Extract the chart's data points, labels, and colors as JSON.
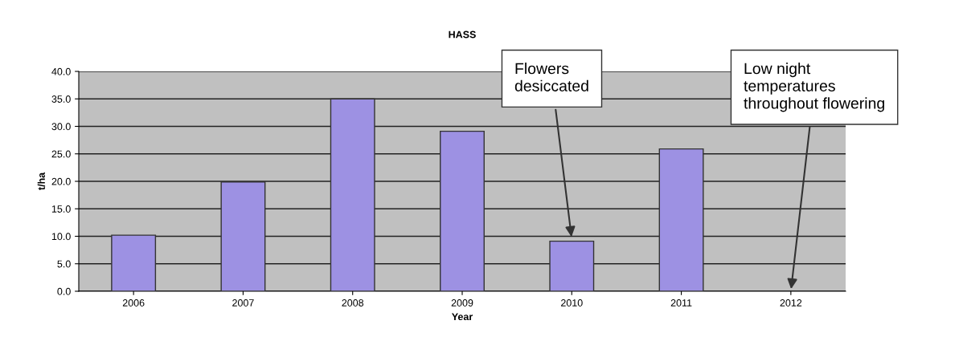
{
  "chart_data": {
    "type": "bar",
    "title": "HASS",
    "xlabel": "Year",
    "ylabel": "t/ha",
    "categories": [
      "2006",
      "2007",
      "2008",
      "2009",
      "2010",
      "2011",
      "2012"
    ],
    "values": [
      10.2,
      19.9,
      35.0,
      29.1,
      9.1,
      25.9,
      0
    ],
    "color": "#9d91e3",
    "ylim": [
      0,
      40
    ],
    "yticks": [
      {
        "value": 0,
        "label": "0.0"
      },
      {
        "value": 5,
        "label": "5.0"
      },
      {
        "value": 10,
        "label": "10.0"
      },
      {
        "value": 15,
        "label": "15.0"
      },
      {
        "value": 20,
        "label": "20.0"
      },
      {
        "value": 25,
        "label": "25.0"
      },
      {
        "value": 30,
        "label": "30.0"
      },
      {
        "value": 35,
        "label": "35.0"
      },
      {
        "value": 40,
        "label": "40.0"
      }
    ],
    "grid": "y",
    "annotations": [
      {
        "text": "Flowers\ndesiccated",
        "x": "2010",
        "y": 9.5
      },
      {
        "text": "Low night\ntemperatures\nthroughout flowering",
        "x": "2012",
        "y": 0
      }
    ]
  }
}
